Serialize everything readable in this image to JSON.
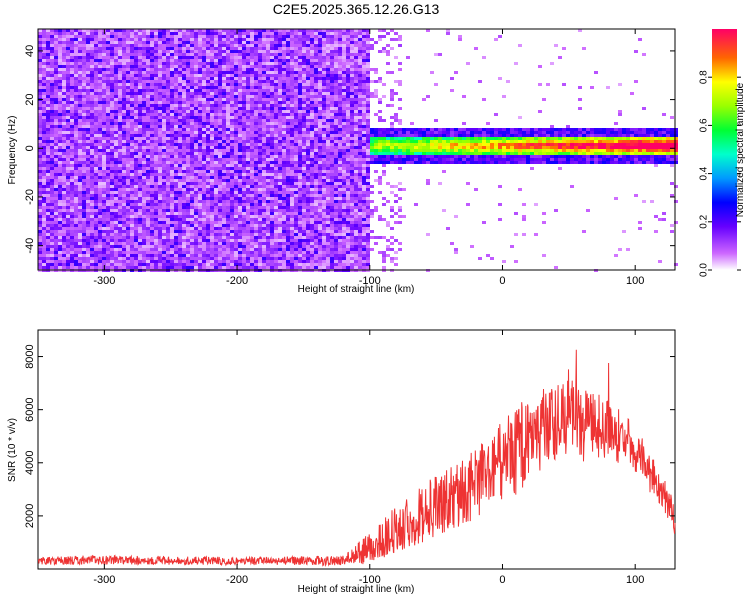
{
  "title": "C2E5.2025.365.12.26.G13",
  "chart_data": [
    {
      "type": "heatmap",
      "name": "spectrogram",
      "xlabel": "Height of straight line (km)",
      "ylabel": "Frequency (Hz)",
      "xlim": [
        -350,
        130
      ],
      "ylim": [
        -50,
        49
      ],
      "xticks": [
        -300,
        -200,
        -100,
        0,
        100
      ],
      "yticks": [
        -40,
        -20,
        0,
        20,
        40
      ],
      "noise_region_end": -100,
      "signal": {
        "start_height": -105,
        "center_frequency": 1,
        "band_halfwidth": 4
      },
      "colorbar": {
        "label": "Normalized spectral amplitude",
        "range": [
          0,
          1
        ],
        "ticks": [
          0.0,
          0.2,
          0.4,
          0.6,
          0.8
        ]
      }
    },
    {
      "type": "line",
      "name": "snr",
      "xlabel": "Height of straight line (km)",
      "ylabel": "SNR (10 * v/v)",
      "xlim": [
        -350,
        130
      ],
      "ylim": [
        0,
        9000
      ],
      "xticks": [
        -300,
        -200,
        -100,
        0,
        100
      ],
      "yticks": [
        2000,
        4000,
        6000,
        8000
      ],
      "color": "#ee3333",
      "envelope": {
        "x": [
          -350,
          -300,
          -200,
          -120,
          -100,
          -80,
          -60,
          -40,
          -20,
          0,
          10,
          20,
          40,
          50,
          60,
          80,
          100,
          120,
          130
        ],
        "y": [
          300,
          350,
          300,
          320,
          800,
          1500,
          2100,
          2600,
          3200,
          4100,
          4500,
          4800,
          5600,
          5900,
          5500,
          5300,
          4500,
          3000,
          1800
        ],
        "noise": [
          150,
          180,
          150,
          180,
          600,
          900,
          1100,
          1200,
          1300,
          1500,
          1700,
          1600,
          1500,
          1700,
          1500,
          1100,
          900,
          700,
          600
        ]
      }
    }
  ]
}
